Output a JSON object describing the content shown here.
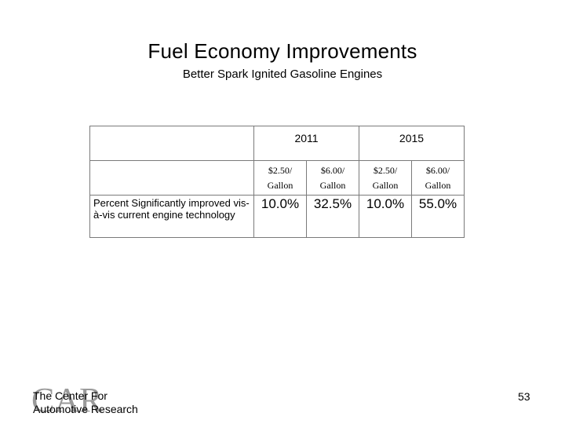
{
  "slide": {
    "title": "Fuel Economy Improvements",
    "subtitle": "Better Spark Ignited Gasoline Engines",
    "page_number": "53"
  },
  "table": {
    "years": [
      "2011",
      "2015"
    ],
    "prices": [
      {
        "line1": "$2.50/",
        "line2": "Gallon"
      },
      {
        "line1": "$6.00/",
        "line2": "Gallon"
      },
      {
        "line1": "$2.50/",
        "line2": "Gallon"
      },
      {
        "line1": "$6.00/",
        "line2": "Gallon"
      }
    ],
    "row_label": "Percent Significantly improved vis-à-vis current engine technology",
    "values": [
      "10.0%",
      "32.5%",
      "10.0%",
      "55.0%"
    ]
  },
  "footer": {
    "logo_letters": "CAR",
    "org_line1": "The Center For",
    "org_line2": "Automotive Research"
  }
}
